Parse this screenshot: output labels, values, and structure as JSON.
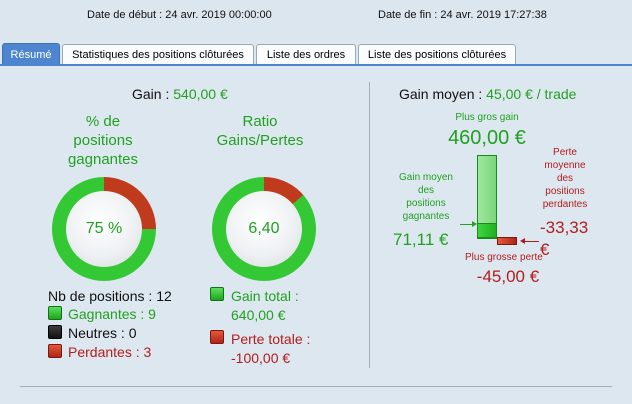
{
  "header": {
    "start_label": "Date de début :",
    "start_value": "24 avr. 2019 00:00:00",
    "end_label": "Date de fin :",
    "end_value": "24 avr. 2019 17:27:38"
  },
  "tabs": [
    {
      "label": "Résumé",
      "active": true
    },
    {
      "label": "Statistiques des positions clôturées",
      "active": false
    },
    {
      "label": "Liste des ordres",
      "active": false
    },
    {
      "label": "Liste des positions clôturées",
      "active": false
    }
  ],
  "summary": {
    "gain_label": "Gain :",
    "gain_value": "540,00 €",
    "winning_title_1": "% de",
    "winning_title_2": "positions",
    "winning_title_3": "gagnantes",
    "winning_percent_text": "75 %",
    "winning_fraction": 0.75,
    "ratio_title_1": "Ratio",
    "ratio_title_2": "Gains/Pertes",
    "ratio_text": "6,40",
    "ratio_gain_fraction": 0.865,
    "nb_positions_label": "Nb de positions :",
    "nb_positions_value": "12",
    "winning_label": "Gagnantes :",
    "winning_value": "9",
    "neutral_label": "Neutres :",
    "neutral_value": "0",
    "losing_label": "Perdantes :",
    "losing_value": "3",
    "total_gain_label": "Gain total :",
    "total_gain_value": "640,00 €",
    "total_loss_label": "Perte totale :",
    "total_loss_value": "-100,00 €"
  },
  "average": {
    "title_label": "Gain moyen :",
    "title_value": "45,00 € / trade",
    "max_gain_label": "Plus gros gain",
    "max_gain_value": "460,00 €",
    "avg_win_label_1": "Gain moyen",
    "avg_win_label_2": "des",
    "avg_win_label_3": "positions",
    "avg_win_label_4": "gagnantes",
    "avg_win_value": "71,11 €",
    "avg_loss_label_1": "Perte",
    "avg_loss_label_2": "moyenne",
    "avg_loss_label_3": "des",
    "avg_loss_label_4": "positions",
    "avg_loss_label_5": "perdantes",
    "avg_loss_value": "-33,33 €",
    "max_loss_label": "Plus grosse perte",
    "max_loss_value": "-45,00 €"
  },
  "colors": {
    "green": "#21a121",
    "red": "#b31d1d",
    "tab_active": "#4d86cf"
  }
}
